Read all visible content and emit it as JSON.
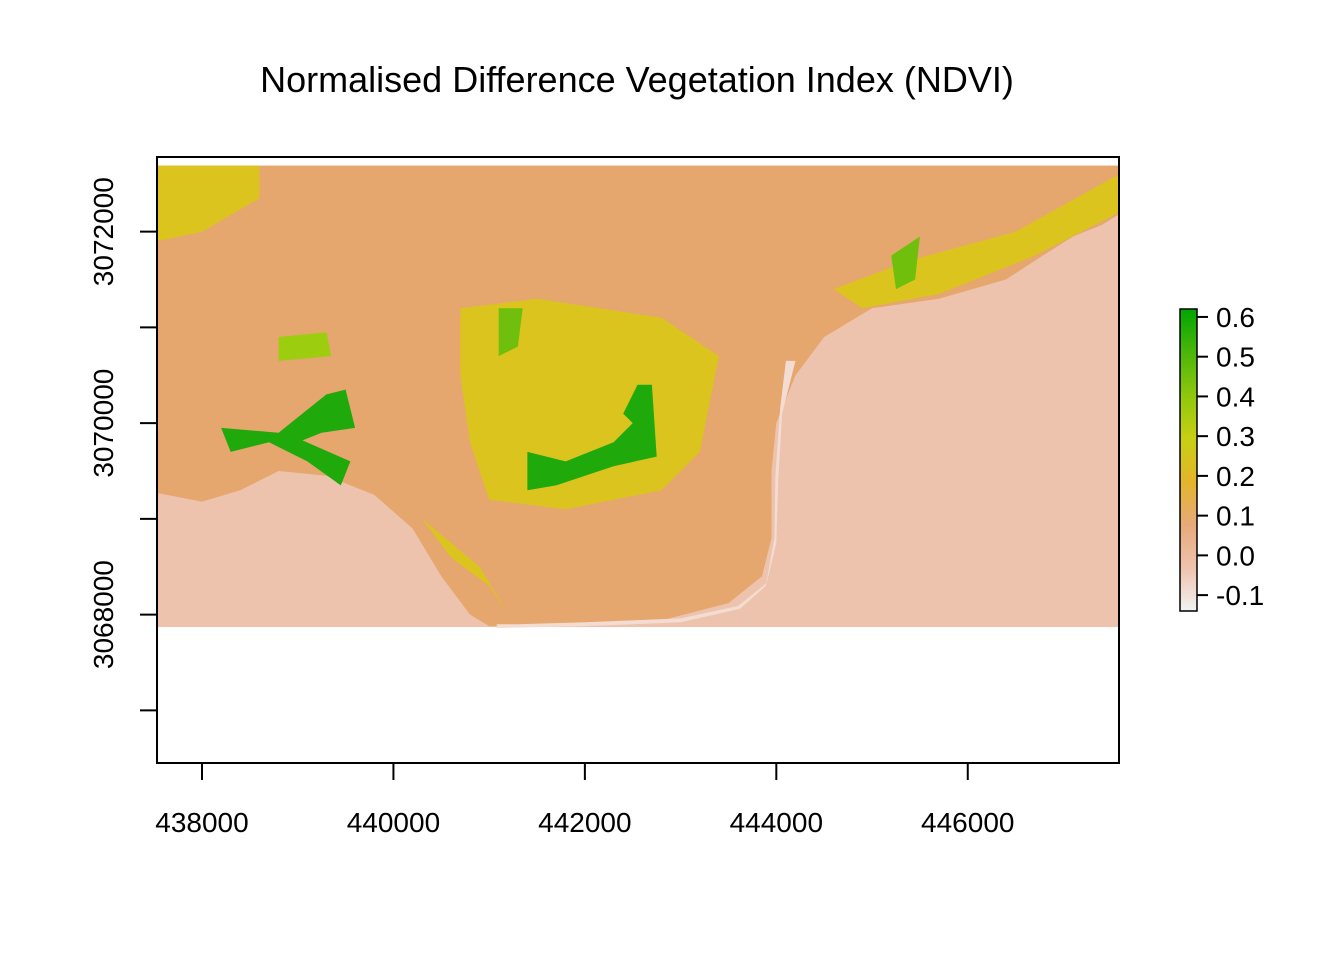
{
  "chart_data": {
    "type": "heatmap",
    "title": "Normalised Difference Vegetation Index (NDVI)",
    "xlabel": "",
    "ylabel": "",
    "xlim": [
      437530,
      447580
    ],
    "ylim": [
      3066450,
      3072780
    ],
    "x_ticks": [
      {
        "value": 438000,
        "label": "438000"
      },
      {
        "value": 440000,
        "label": "440000"
      },
      {
        "value": 442000,
        "label": "442000"
      },
      {
        "value": 444000,
        "label": "444000"
      },
      {
        "value": 446000,
        "label": "446000"
      }
    ],
    "y_ticks": [
      {
        "value": 3067000,
        "label": ""
      },
      {
        "value": 3068000,
        "label": "3068000"
      },
      {
        "value": 3069000,
        "label": ""
      },
      {
        "value": 3070000,
        "label": "3070000"
      },
      {
        "value": 3071000,
        "label": ""
      },
      {
        "value": 3072000,
        "label": "3072000"
      },
      {
        "value": 3073000,
        "label": ""
      }
    ],
    "raster_extent": {
      "x": [
        437530,
        447580
      ],
      "y": [
        3067870,
        3072690
      ]
    },
    "grid": false,
    "legend_position": "right",
    "colorbar": {
      "min": -0.14,
      "max": 0.62,
      "colors": [
        "#f2f2f2",
        "#eec3ae",
        "#e8a97a",
        "#e3b52a",
        "#c8cf14",
        "#8ec80c",
        "#4ab60a",
        "#00a600"
      ],
      "ticks": [
        {
          "value": 0.6,
          "label": "0.6"
        },
        {
          "value": 0.5,
          "label": "0.5"
        },
        {
          "value": 0.4,
          "label": "0.4"
        },
        {
          "value": 0.3,
          "label": "0.3"
        },
        {
          "value": 0.2,
          "label": "0.2"
        },
        {
          "value": 0.1,
          "label": "0.1"
        },
        {
          "value": 0.0,
          "label": "0.0"
        },
        {
          "value": -0.1,
          "label": "-0.1"
        }
      ]
    },
    "regions": [
      {
        "class": "land",
        "ndvi": 0.1,
        "color": "#e5a76d",
        "points": [
          [
            437530,
            3072690
          ],
          [
            447580,
            3072690
          ],
          [
            447580,
            3072180
          ],
          [
            447400,
            3072070
          ],
          [
            447100,
            3071950
          ],
          [
            446800,
            3071760
          ],
          [
            446400,
            3071500
          ],
          [
            445700,
            3071300
          ],
          [
            445000,
            3071200
          ],
          [
            444500,
            3070900
          ],
          [
            444200,
            3070500
          ],
          [
            444000,
            3070000
          ],
          [
            443950,
            3069500
          ],
          [
            443950,
            3068800
          ],
          [
            443850,
            3068400
          ],
          [
            443500,
            3068120
          ],
          [
            442800,
            3067940
          ],
          [
            442000,
            3067900
          ],
          [
            441300,
            3067880
          ],
          [
            441000,
            3067880
          ],
          [
            440800,
            3068000
          ],
          [
            440500,
            3068400
          ],
          [
            440200,
            3068900
          ],
          [
            439800,
            3069250
          ],
          [
            439300,
            3069450
          ],
          [
            438800,
            3069500
          ],
          [
            438400,
            3069300
          ],
          [
            438000,
            3069180
          ],
          [
            437530,
            3069270
          ]
        ]
      },
      {
        "class": "beach",
        "ndvi": -0.12,
        "color": "#f3ddd2",
        "points": [
          [
            444100,
            3070650
          ],
          [
            444200,
            3070650
          ],
          [
            444060,
            3070100
          ],
          [
            444020,
            3069400
          ],
          [
            444000,
            3068750
          ],
          [
            443900,
            3068330
          ],
          [
            443600,
            3068090
          ],
          [
            443000,
            3067960
          ],
          [
            442000,
            3067920
          ],
          [
            441300,
            3067900
          ],
          [
            441080,
            3067900
          ],
          [
            441080,
            3067860
          ],
          [
            442000,
            3067880
          ],
          [
            443000,
            3067920
          ],
          [
            443620,
            3068060
          ],
          [
            443890,
            3068300
          ],
          [
            443980,
            3068800
          ],
          [
            443990,
            3069450
          ],
          [
            444040,
            3070150
          ]
        ]
      },
      {
        "class": "veg-sparse",
        "ndvi": 0.22,
        "color": "#dcc41f",
        "points": [
          [
            437530,
            3072690
          ],
          [
            438600,
            3072690
          ],
          [
            438600,
            3072350
          ],
          [
            438000,
            3072000
          ],
          [
            437530,
            3071900
          ]
        ]
      },
      {
        "class": "veg-sparse",
        "ndvi": 0.22,
        "color": "#dcc41f",
        "points": [
          [
            440700,
            3071200
          ],
          [
            441500,
            3071300
          ],
          [
            442800,
            3071100
          ],
          [
            443400,
            3070700
          ],
          [
            443200,
            3069700
          ],
          [
            442800,
            3069300
          ],
          [
            441800,
            3069100
          ],
          [
            441000,
            3069200
          ],
          [
            440800,
            3069800
          ],
          [
            440700,
            3070500
          ]
        ]
      },
      {
        "class": "veg-sparse",
        "ndvi": 0.22,
        "color": "#dcc41f",
        "points": [
          [
            444600,
            3071400
          ],
          [
            445400,
            3071700
          ],
          [
            446500,
            3072000
          ],
          [
            447580,
            3072600
          ],
          [
            447580,
            3072200
          ],
          [
            446700,
            3071750
          ],
          [
            445700,
            3071350
          ],
          [
            444900,
            3071200
          ]
        ]
      },
      {
        "class": "veg-sparse",
        "ndvi": 0.22,
        "color": "#dcc41f",
        "points": [
          [
            440300,
            3069000
          ],
          [
            440900,
            3068500
          ],
          [
            441200,
            3068000
          ],
          [
            441000,
            3068300
          ],
          [
            440600,
            3068600
          ]
        ]
      },
      {
        "class": "veg-mid",
        "ndvi": 0.38,
        "color": "#9ccd0e",
        "points": [
          [
            438800,
            3070900
          ],
          [
            439300,
            3070950
          ],
          [
            439350,
            3070700
          ],
          [
            438800,
            3070650
          ]
        ]
      },
      {
        "class": "veg-dense",
        "ndvi": 0.55,
        "color": "#1fa90b",
        "points": [
          [
            438200,
            3069950
          ],
          [
            438800,
            3069900
          ],
          [
            439300,
            3070300
          ],
          [
            439500,
            3070350
          ],
          [
            439600,
            3069950
          ],
          [
            439250,
            3069900
          ],
          [
            439050,
            3069820
          ],
          [
            439550,
            3069600
          ],
          [
            439450,
            3069350
          ],
          [
            439100,
            3069600
          ],
          [
            438700,
            3069800
          ],
          [
            438300,
            3069700
          ]
        ]
      },
      {
        "class": "veg-dense",
        "ndvi": 0.55,
        "color": "#1fa90b",
        "points": [
          [
            441400,
            3069700
          ],
          [
            441800,
            3069600
          ],
          [
            442300,
            3069800
          ],
          [
            442500,
            3070000
          ],
          [
            442400,
            3070100
          ],
          [
            442550,
            3070400
          ],
          [
            442700,
            3070400
          ],
          [
            442750,
            3069650
          ],
          [
            442300,
            3069550
          ],
          [
            441700,
            3069350
          ],
          [
            441400,
            3069300
          ]
        ]
      },
      {
        "class": "veg-mid",
        "ndvi": 0.42,
        "color": "#6fbf0c",
        "points": [
          [
            441100,
            3071200
          ],
          [
            441350,
            3071200
          ],
          [
            441300,
            3070800
          ],
          [
            441100,
            3070700
          ]
        ]
      },
      {
        "class": "veg-mid",
        "ndvi": 0.42,
        "color": "#6fbf0c",
        "points": [
          [
            445200,
            3071750
          ],
          [
            445500,
            3071950
          ],
          [
            445450,
            3071500
          ],
          [
            445250,
            3071400
          ]
        ]
      }
    ]
  }
}
